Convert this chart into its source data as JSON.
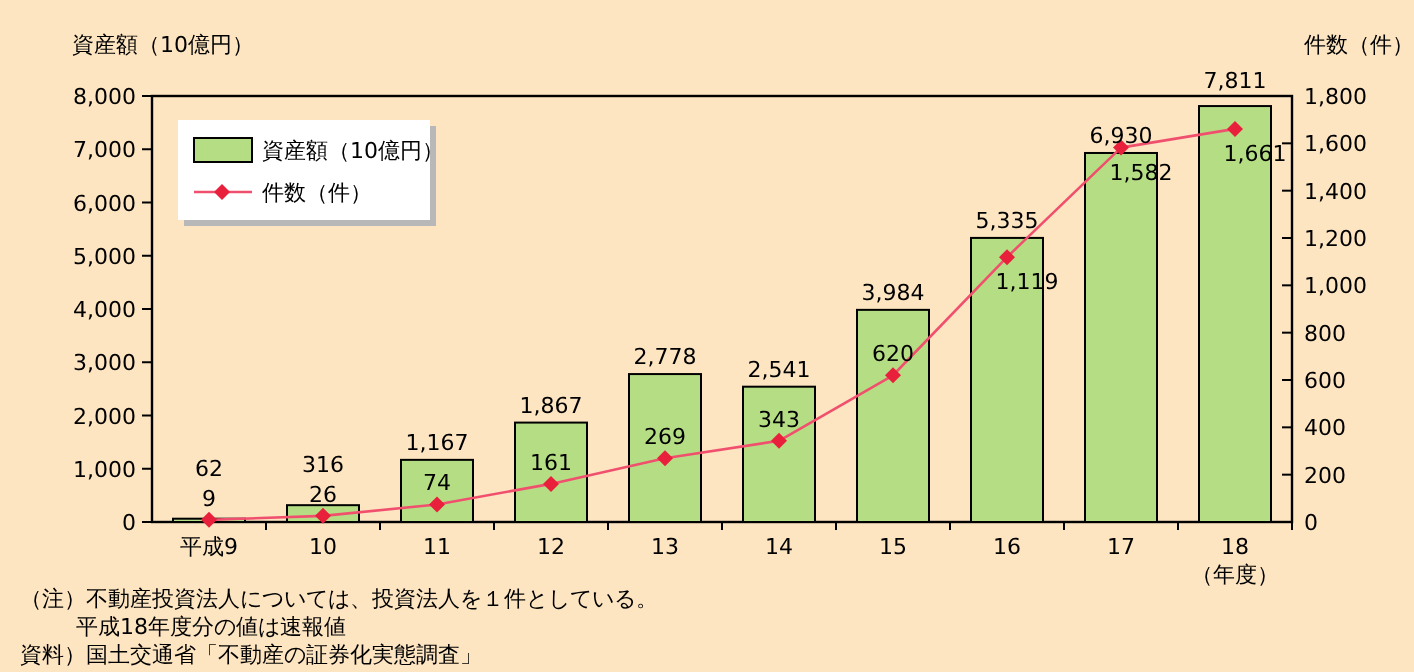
{
  "chart_data": {
    "type": "bar",
    "categories": [
      "平成9",
      "10",
      "11",
      "12",
      "13",
      "14",
      "15",
      "16",
      "17",
      "18"
    ],
    "xlabel": "（年度）",
    "ylabel": "資産額（10億円）",
    "y2label": "件数（件）",
    "series": [
      {
        "name": "資産額（10億円）",
        "color": "#b5de84",
        "values": [
          62,
          316,
          1167,
          1867,
          2778,
          2541,
          3984,
          5335,
          6930,
          7811
        ],
        "value_labels": [
          "62",
          "316",
          "1,167",
          "1,867",
          "2,778",
          "2,541",
          "3,984",
          "5,335",
          "6,930",
          "7,811"
        ]
      },
      {
        "name": "件数（件）",
        "type": "line",
        "axis": "y2",
        "color": "#f0506e",
        "marker": "diamond",
        "values": [
          9,
          26,
          74,
          161,
          269,
          343,
          620,
          1119,
          1582,
          1661
        ],
        "value_labels": [
          "9",
          "26",
          "74",
          "161",
          "269",
          "343",
          "620",
          "1,119",
          "1,582",
          "1,661"
        ]
      }
    ],
    "ylim": [
      0,
      8000
    ],
    "yticks": [
      0,
      {
        "value": 1000,
        "label": "1,000"
      },
      {
        "value": 2000,
        "label": "2,000"
      },
      {
        "value": 3000,
        "label": "3,000"
      },
      {
        "value": 4000,
        "label": "4,000"
      },
      {
        "value": 5000,
        "label": "5,000"
      },
      {
        "value": 6000,
        "label": "6,000"
      },
      {
        "value": 7000,
        "label": "7,000"
      },
      {
        "value": 8000,
        "label": "8,000"
      }
    ],
    "y2lim": [
      0,
      1800
    ],
    "y2ticks": [
      0,
      200,
      400,
      600,
      800,
      {
        "value": 1000,
        "label": "1,000"
      },
      {
        "value": 1200,
        "label": "1,200"
      },
      {
        "value": 1400,
        "label": "1,400"
      },
      {
        "value": 1600,
        "label": "1,600"
      },
      {
        "value": 1800,
        "label": "1,800"
      }
    ],
    "legend": "top left",
    "grid": false,
    "annotations": [
      "（注）不動産投資法人については、投資法人を１件としている。",
      "平成18年度分の値は速報値",
      "資料）国土交通省「不動産の証券化実態調査」"
    ]
  }
}
